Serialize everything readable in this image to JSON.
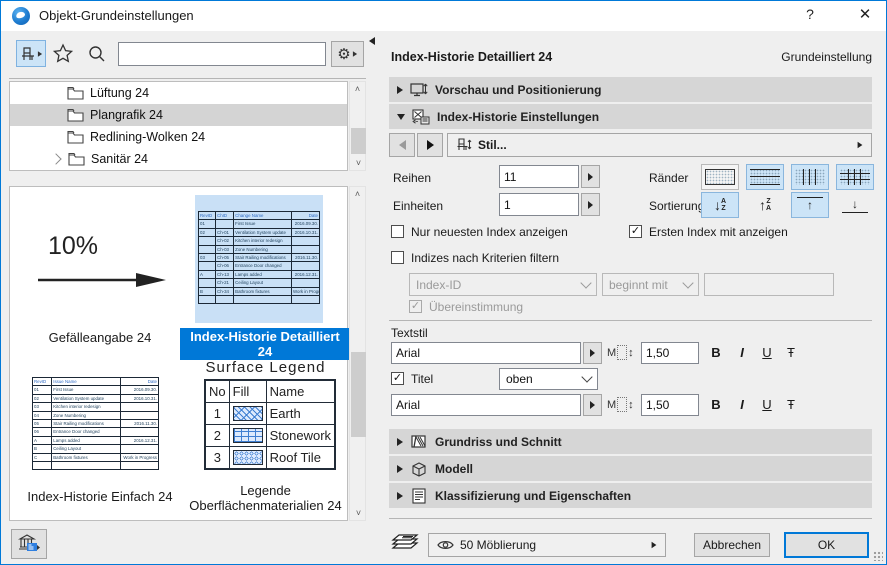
{
  "window": {
    "title": "Objekt-Grundeinstellungen",
    "help": "?",
    "close": "✕"
  },
  "colors": {
    "accent": "#0078d7",
    "toggle_on": "#cce4f7",
    "section_bar": "#d6d6d6",
    "selection": "#0078d7"
  },
  "left": {
    "search": {
      "value": "",
      "placeholder": ""
    },
    "tree": {
      "items": [
        {
          "label": "Lüftung 24"
        },
        {
          "label": "Plangrafik 24"
        },
        {
          "label": "Redlining-Wolken 24"
        },
        {
          "label": "Sanitär 24"
        }
      ]
    },
    "thumbs": {
      "slope": {
        "label": "Gefälleangabe 24",
        "value": "10%"
      },
      "detail": {
        "label": "Index-Historie Detailliert 24",
        "table": {
          "rows": [
            [
              "RevID",
              "ChID",
              "Change Name",
              "Date"
            ],
            [
              "01",
              "",
              "First Issue",
              "2016.09.30."
            ],
            [
              "02",
              "Ch-01",
              "Ventilation System update",
              "2016.10.31."
            ],
            [
              "",
              "Ch-02",
              "Kitchen interior redesign",
              ""
            ],
            [
              "",
              "Ch-03",
              "Zone Numbering",
              ""
            ],
            [
              "03",
              "Ch-05",
              "Stair Railing modifications",
              "2016.11.30."
            ],
            [
              "",
              "Ch-06",
              "Entrance Door changed",
              ""
            ],
            [
              "A",
              "Ch-13",
              "Lamps added",
              "2016.12.31."
            ],
            [
              "",
              "Ch-21",
              "Ceiling Layout",
              ""
            ],
            [
              "B",
              "Ch-34",
              "Bathroom fixtures",
              "Work in Progress"
            ],
            [
              "",
              "",
              "",
              ""
            ]
          ]
        }
      },
      "simple": {
        "label": "Index-Historie Einfach 24",
        "table": {
          "rows": [
            [
              "RevID",
              "Issue Name",
              "Date"
            ],
            [
              "01",
              "First Issue",
              "2016.09.30."
            ],
            [
              "02",
              "Ventilation System update",
              "2016.10.31."
            ],
            [
              "03",
              "Kitchen interior redesign",
              ""
            ],
            [
              "04",
              "Zone Numbering",
              ""
            ],
            [
              "05",
              "Stair Railing modifications",
              "2016.11.30."
            ],
            [
              "06",
              "Entrance Door changed",
              ""
            ],
            [
              "A",
              "Lamps added",
              "2016.12.31."
            ],
            [
              "B",
              "Ceiling Layout",
              ""
            ],
            [
              "C",
              "Bathroom fixtures",
              "Work in Progress"
            ],
            [
              "",
              "",
              ""
            ]
          ]
        }
      },
      "legend": {
        "label_line1": "Legende",
        "label_line2": "Oberflächenmaterialien 24",
        "title": "Surface Legend",
        "header": {
          "no": "No",
          "fill": "Fill",
          "name": "Name"
        },
        "rows": [
          {
            "no": "1",
            "fill": "hatch",
            "name": "Earth"
          },
          {
            "no": "2",
            "fill": "brick",
            "name": "Stonework"
          },
          {
            "no": "3",
            "fill": "honeycomb",
            "name": "Roof Tile"
          }
        ]
      }
    }
  },
  "right": {
    "header": {
      "title": "Index-Historie Detailliert 24",
      "mode": "Grundeinstellung"
    },
    "sections": {
      "preview": "Vorschau und Positionierung",
      "index": "Index-Historie Einstellungen",
      "plan": "Grundriss und Schnitt",
      "model": "Modell",
      "classification": "Klassifizierung und Eigenschaften"
    },
    "stil": {
      "label": "Stil..."
    },
    "fields": {
      "reihen_label": "Reihen",
      "reihen_value": "11",
      "einheiten_label": "Einheiten",
      "einheiten_value": "1",
      "raender_label": "Ränder",
      "sortierung_label": "Sortierung"
    },
    "sort": {
      "az_a": "A",
      "az_z": "Z",
      "za_z": "Z",
      "za_a": "A",
      "down": "↓",
      "up": "↑"
    },
    "checks": {
      "newest": {
        "label": "Nur neuesten Index anzeigen",
        "checked": false
      },
      "first": {
        "label": "Ersten Index mit anzeigen",
        "checked": true,
        "mark": "✓"
      },
      "filter": {
        "label": "Indizes nach Kriterien filtern",
        "checked": false
      },
      "match": {
        "label": "Übereinstimmung",
        "checked": true,
        "mark": "✓"
      }
    },
    "filter": {
      "criteria": "Index-ID",
      "operator": "beginnt mit",
      "value": ""
    },
    "textstil": {
      "label": "Textstil",
      "font1": "Arial",
      "size1": "1,50",
      "titel_label": "Titel",
      "titel_mark": "✓",
      "titel_pos": "oben",
      "font2": "Arial",
      "size2": "1,50",
      "bold": "B",
      "italic": "I",
      "underline": "U",
      "strike": "Ŧ",
      "m_glyph": "M",
      "updown": "↕"
    },
    "footer": {
      "layer": "50 Möblierung",
      "cancel": "Abbrechen",
      "ok": "OK"
    }
  }
}
